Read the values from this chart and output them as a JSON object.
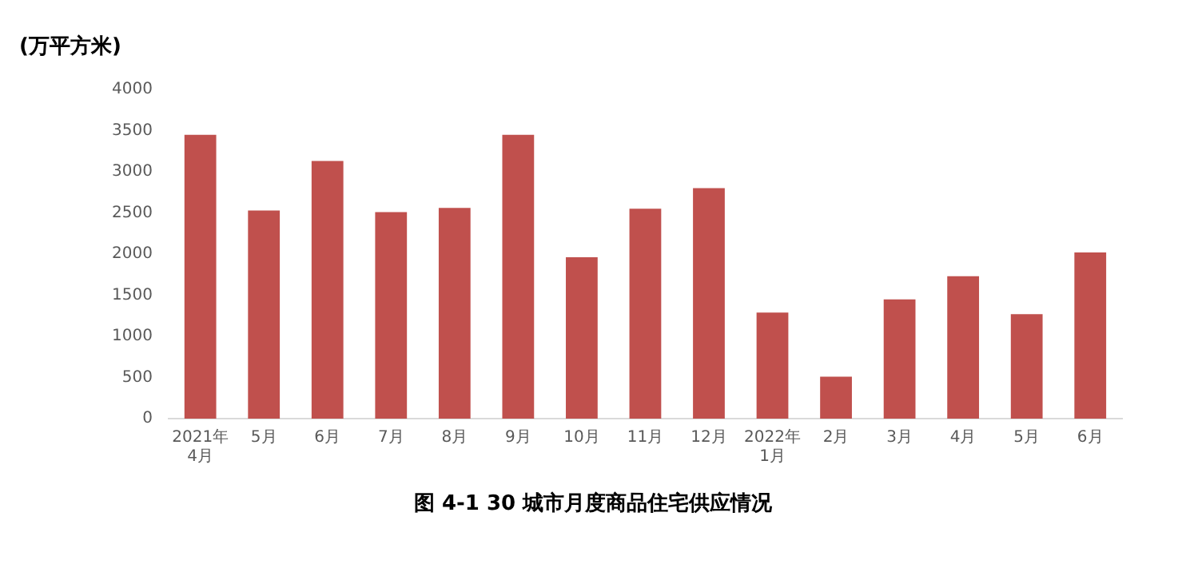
{
  "chart_data": {
    "type": "bar",
    "title": "图 4-1   30 城市月度商品住宅供应情况",
    "ylabel": "(万平方米)",
    "categories": [
      "2021年\n4月",
      "5月",
      "6月",
      "7月",
      "8月",
      "9月",
      "10月",
      "11月",
      "12月",
      "2022年\n1月",
      "2月",
      "3月",
      "4月",
      "5月",
      "6月"
    ],
    "values": [
      3450,
      2530,
      3130,
      2510,
      2560,
      3450,
      1960,
      2550,
      2800,
      1290,
      510,
      1450,
      1730,
      1270,
      2020
    ],
    "color": "#c0504d",
    "ylim": [
      0,
      4000
    ],
    "yticks": [
      0,
      500,
      1000,
      1500,
      2000,
      2500,
      3000,
      3500,
      4000
    ],
    "grid": false,
    "legend": false
  }
}
